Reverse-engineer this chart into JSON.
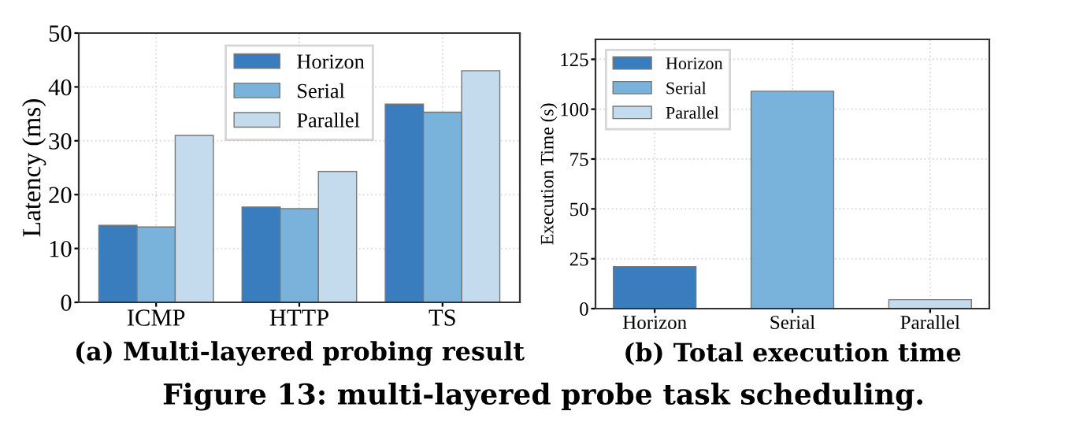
{
  "chart_data": [
    {
      "type": "bar",
      "title": "(a) Multi-layered probing result",
      "ylabel": "Latency (ms)",
      "categories": [
        "ICMP",
        "HTTP",
        "TS"
      ],
      "series": [
        {
          "name": "Horizon",
          "color": "#3a7dbf",
          "values": [
            14.3,
            17.7,
            36.8
          ]
        },
        {
          "name": "Serial",
          "color": "#79b3dc",
          "values": [
            14.0,
            17.4,
            35.3
          ]
        },
        {
          "name": "Parallel",
          "color": "#c3dbec",
          "values": [
            31,
            24.3,
            43.0
          ]
        }
      ],
      "ylim": [
        0,
        50
      ],
      "yticks": [
        0,
        10,
        20,
        30,
        40,
        50
      ],
      "grid": true,
      "legend": "top",
      "annotations": [
        "Figure 13: multi-layered probe task scheduling."
      ]
    },
    {
      "type": "bar",
      "title": "(b) Total execution time",
      "ylabel": "Execution Time (s)",
      "categories": [
        "Horizon",
        "Serial",
        "Parallel"
      ],
      "series": [
        {
          "name": "Horizon",
          "color": "#3a7dbf",
          "values": [
            21,
            null,
            null
          ]
        },
        {
          "name": "Serial",
          "color": "#79b3dc",
          "values": [
            null,
            109,
            null
          ]
        },
        {
          "name": "Parallel",
          "color": "#c3dbec",
          "values": [
            null,
            null,
            4.5
          ]
        }
      ],
      "ylim": [
        0,
        135
      ],
      "yticks": [
        0,
        25,
        50,
        75,
        100,
        125
      ],
      "grid": true,
      "legend": "top left"
    }
  ]
}
